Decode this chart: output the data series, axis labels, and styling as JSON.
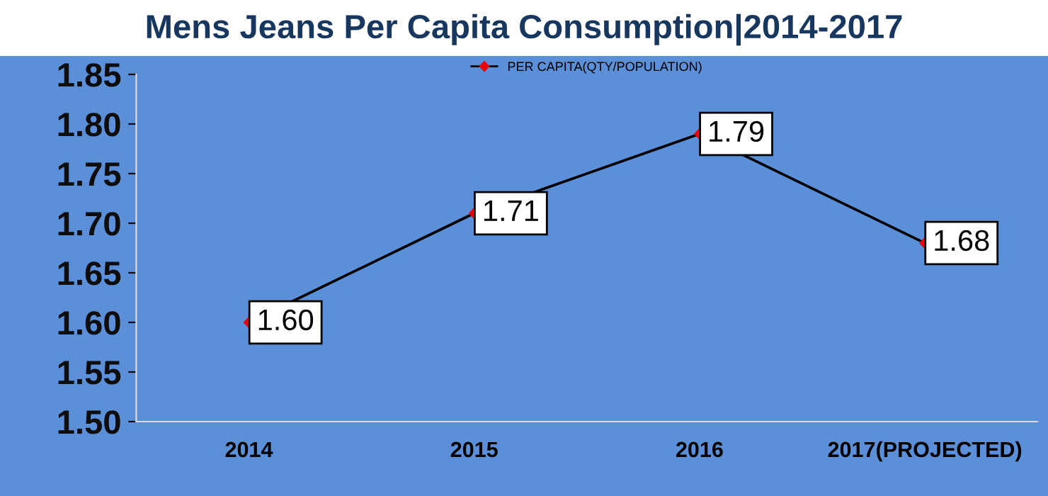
{
  "chart_data": {
    "type": "line",
    "title": "Mens Jeans Per Capita Consumption|2014-2017",
    "categories": [
      "2014",
      "2015",
      "2016",
      "2017(PROJECTED)"
    ],
    "series": [
      {
        "name": "PER CAPITA(QTY/POPULATION)",
        "color": "#000000",
        "colors": [
          "#e8000b",
          "#e8000b",
          "#e8000b",
          "#e8000b"
        ],
        "values": [
          1.6,
          1.71,
          1.79,
          1.68
        ],
        "value_labels": [
          "1.60",
          "1.71",
          "1.79",
          "1.68"
        ]
      }
    ],
    "ylim": [
      1.5,
      1.85
    ],
    "yticks": [
      "1.50",
      "1.55",
      "1.60",
      "1.65",
      "1.70",
      "1.75",
      "1.80",
      "1.85"
    ],
    "grid": false,
    "legend": "top",
    "marker": "diamond",
    "line_style": "solid"
  }
}
